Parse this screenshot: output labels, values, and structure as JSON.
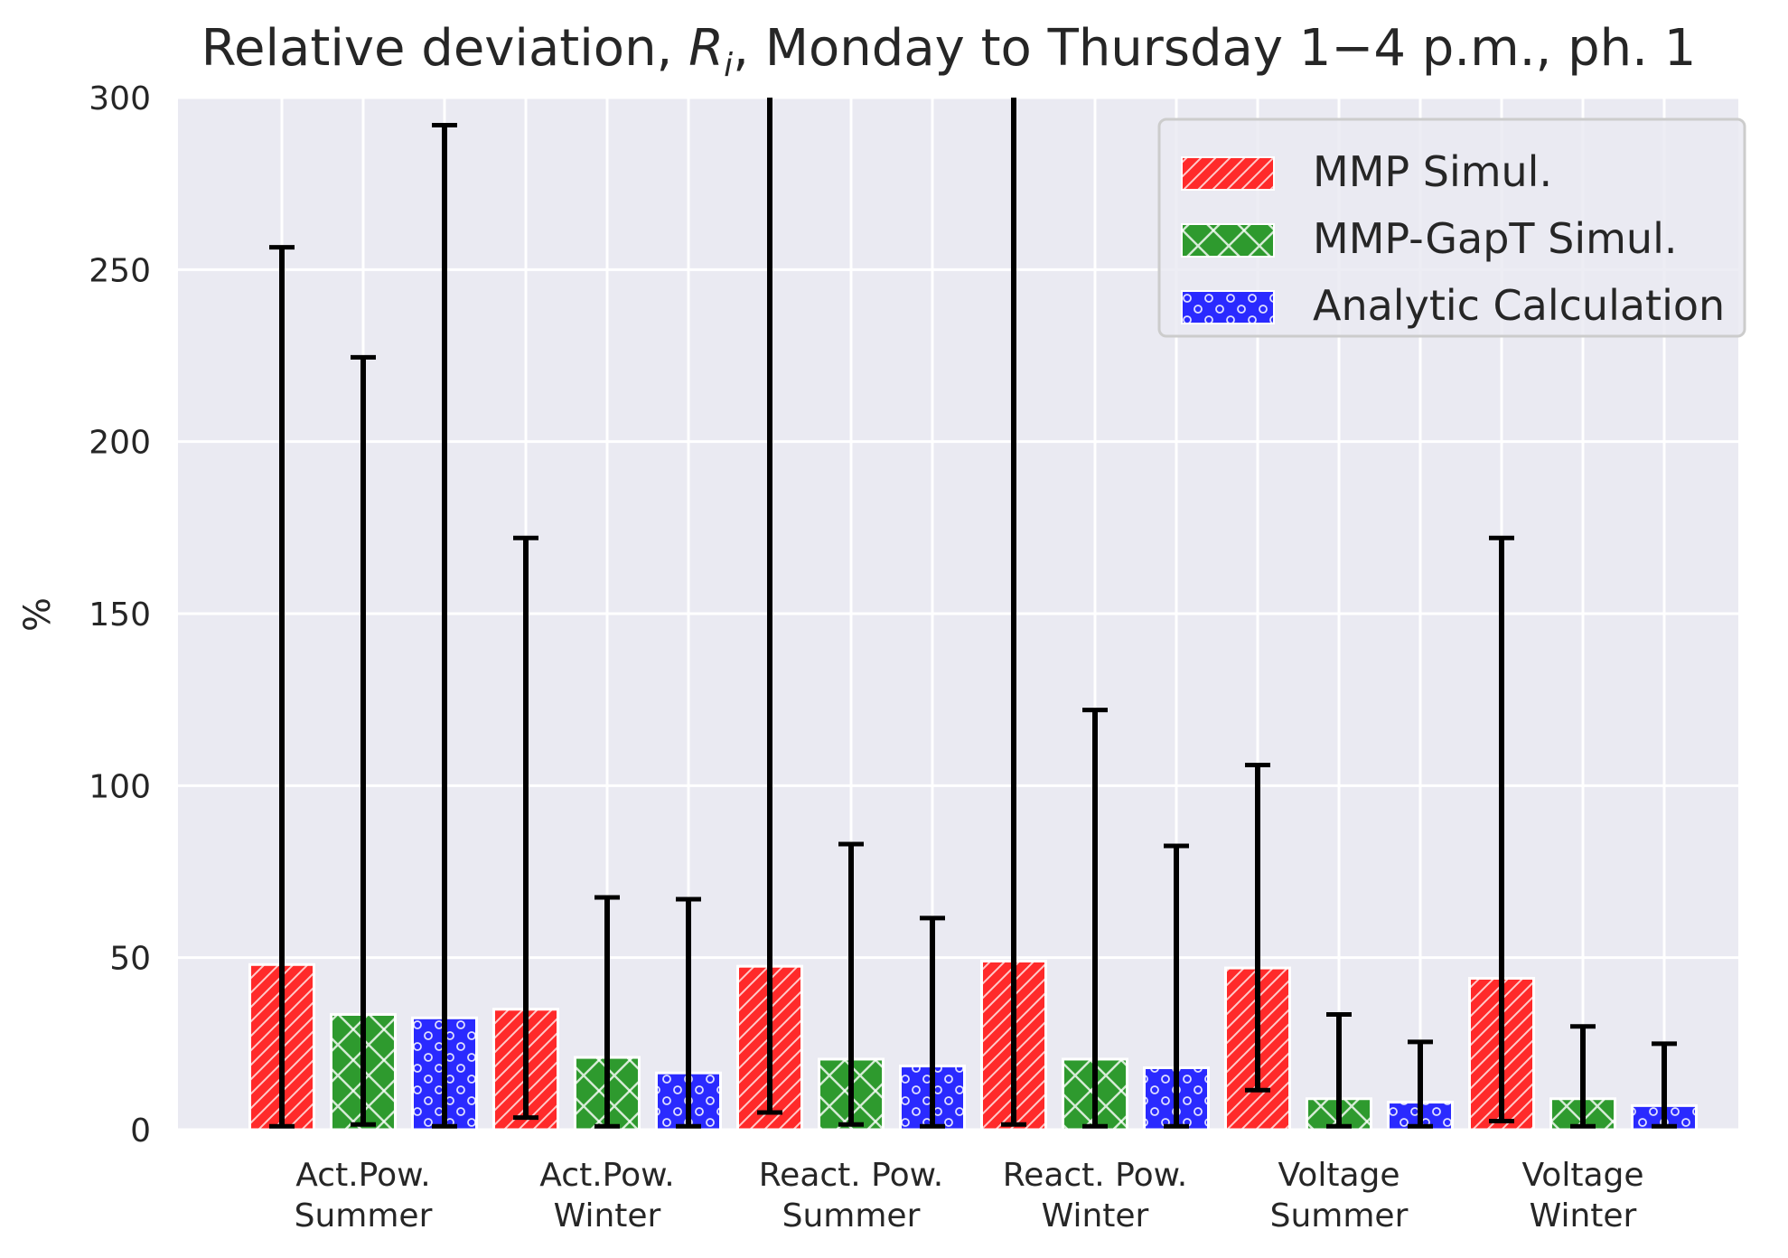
{
  "chart_data": {
    "type": "bar",
    "title": "Relative deviation, Rᵢ, Monday to Thursday 1−4 p.m., ph. 1",
    "title_parts": {
      "prefix": "Relative deviation, ",
      "symbol": "R",
      "subscript": "i",
      "suffix": ", Monday to Thursday 1−4 p.m., ph. 1"
    },
    "xlabel": "",
    "ylabel": "%",
    "ylim": [
      0,
      300
    ],
    "yticks": [
      0,
      50,
      100,
      150,
      200,
      250,
      300
    ],
    "grid": true,
    "legend_position": "top-right",
    "categories": [
      [
        "Act.Pow.",
        "Summer"
      ],
      [
        "Act.Pow.",
        "Winter"
      ],
      [
        "React. Pow.",
        "Summer"
      ],
      [
        "React. Pow.",
        "Winter"
      ],
      [
        "Voltage",
        "Summer"
      ],
      [
        "Voltage",
        "Winter"
      ]
    ],
    "series": [
      {
        "name": "MMP Simul.",
        "color": "#ff2a2a",
        "pattern": "diagonal-hatch",
        "values": [
          48,
          35,
          47.5,
          49,
          47,
          44
        ],
        "err_low": [
          1,
          3.5,
          5,
          1.5,
          11.5,
          2.5
        ],
        "err_high": [
          256.5,
          172,
          305,
          305,
          106,
          172
        ]
      },
      {
        "name": "MMP-GapT Simul.",
        "color": "#2e9a2e",
        "pattern": "cross-hatch",
        "values": [
          33.5,
          21,
          20.5,
          20.5,
          9,
          9
        ],
        "err_low": [
          1.5,
          1,
          1.5,
          1,
          1,
          1
        ],
        "err_high": [
          224.5,
          67.5,
          83,
          122,
          33.5,
          30
        ]
      },
      {
        "name": "Analytic Calculation",
        "color": "#2a2aff",
        "pattern": "dots",
        "values": [
          32.5,
          16.5,
          18.5,
          18,
          8,
          7
        ],
        "err_low": [
          1,
          1,
          1,
          1,
          1,
          1
        ],
        "err_high": [
          292,
          67,
          61.5,
          82.5,
          25.5,
          25
        ]
      }
    ]
  }
}
